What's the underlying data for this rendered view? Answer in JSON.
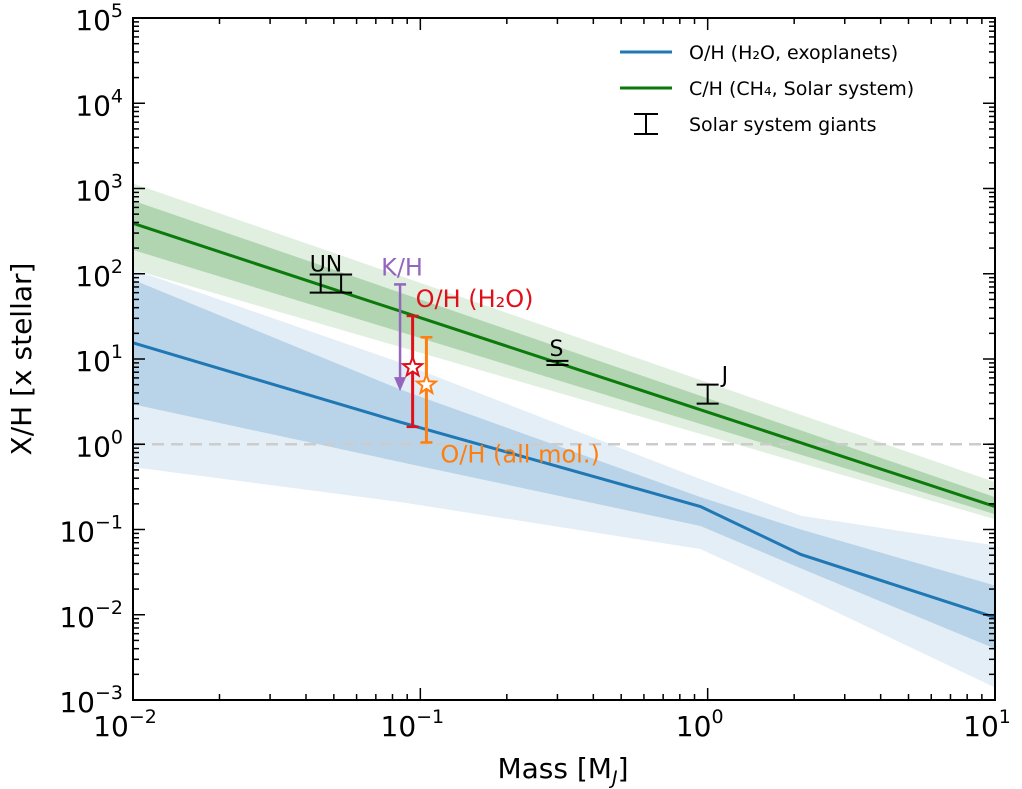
{
  "chart_data": {
    "type": "line",
    "xlabel": "Mass [M",
    "xlabel_sub": "J",
    "xlabel_end": "]",
    "ylabel": "X/H [x stellar]",
    "xscale": "log",
    "yscale": "log",
    "xlim": [
      0.01,
      10
    ],
    "ylim": [
      0.001,
      100000
    ],
    "grid": false,
    "legend_placement": "top-right",
    "x_ticks": [
      {
        "value": 0.01,
        "base": "10",
        "exp": "−2"
      },
      {
        "value": 0.1,
        "base": "10",
        "exp": "−1"
      },
      {
        "value": 1,
        "base": "10",
        "exp": "0"
      },
      {
        "value": 10,
        "base": "10",
        "exp": "1"
      }
    ],
    "y_ticks": [
      {
        "value": 0.001,
        "base": "10",
        "exp": "−3"
      },
      {
        "value": 0.01,
        "base": "10",
        "exp": "−2"
      },
      {
        "value": 0.1,
        "base": "10",
        "exp": "−1"
      },
      {
        "value": 1,
        "base": "10",
        "exp": "0"
      },
      {
        "value": 10,
        "base": "10",
        "exp": "1"
      },
      {
        "value": 100,
        "base": "10",
        "exp": "2"
      },
      {
        "value": 1000,
        "base": "10",
        "exp": "3"
      },
      {
        "value": 10000,
        "base": "10",
        "exp": "4"
      },
      {
        "value": 100000,
        "base": "10",
        "exp": "5"
      }
    ],
    "reference_line": {
      "y": 1,
      "color": "#cccccc",
      "style": "dashed"
    },
    "series": [
      {
        "name": "O/H (H₂O, exoplanets)",
        "color": "#1f77b4",
        "x": [
          0.01,
          0.085,
          0.944,
          2.11,
          10
        ],
        "y": [
          15.5,
          1.82,
          0.186,
          0.051,
          0.0093
        ],
        "band_inner": {
          "low": [
            2.95,
            0.62,
            0.11,
            0.035,
            0.004
          ],
          "high": [
            85,
            4.4,
            0.24,
            0.1,
            0.022
          ]
        },
        "band_outer": {
          "low": [
            0.54,
            0.21,
            0.059,
            0.017,
            0.0014
          ],
          "high": [
            112,
            9.1,
            0.39,
            0.145,
            0.065
          ]
        }
      },
      {
        "name": "C/H (CH₄, Solar system)",
        "color": "#0b7a0b",
        "x": [
          0.01,
          10
        ],
        "y": [
          390,
          0.186
        ],
        "band_inner": {
          "low": [
            190,
            0.151
          ],
          "high": [
            720,
            0.24
          ]
        },
        "band_outer": {
          "low": [
            112,
            0.132
          ],
          "high": [
            1150,
            0.36
          ]
        }
      }
    ],
    "legend": [
      {
        "label": "O/H (H₂O, exoplanets)",
        "marker": "line",
        "color": "#1f77b4"
      },
      {
        "label": "C/H (CH₄, Solar system)",
        "marker": "line",
        "color": "#0b7a0b"
      },
      {
        "label": "Solar system giants",
        "marker": "errorbar",
        "color": "#000000"
      }
    ],
    "solar_system_giants": [
      {
        "label": "U",
        "x": 0.045,
        "y": 80,
        "ylow": 60,
        "yhigh": 98
      },
      {
        "label": "N",
        "x": 0.053,
        "y": 80,
        "ylow": 60,
        "yhigh": 98
      },
      {
        "label": "S",
        "x": 0.3,
        "y": 9,
        "ylow": 8.5,
        "yhigh": 9.5
      },
      {
        "label": "J",
        "x": 1.0,
        "y": 4,
        "ylow": 3,
        "yhigh": 5
      }
    ],
    "giant_label_group": "UN",
    "measurements": [
      {
        "label": "K/H",
        "color": "#9467bd",
        "x": 0.085,
        "yhigh": 75,
        "ylow": 4.2,
        "upper_limit": true
      },
      {
        "label": "O/H (H₂O)",
        "color": "#e0101a",
        "x": 0.094,
        "y": 8,
        "ylow": 1.6,
        "yhigh": 32,
        "marker": "star"
      },
      {
        "label": "O/H (all mol.)",
        "color": "#ff7f0e",
        "x": 0.105,
        "y": 5,
        "ylow": 1.05,
        "yhigh": 18,
        "marker": "star"
      }
    ]
  }
}
